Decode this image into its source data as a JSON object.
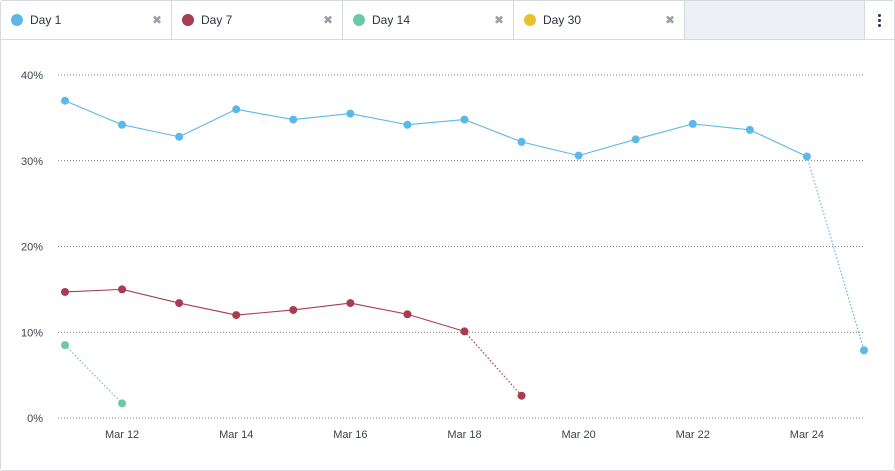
{
  "tabs": [
    {
      "label": "Day 1",
      "color": "#5cb8e8",
      "close_icon": "close-icon"
    },
    {
      "label": "Day 7",
      "color": "#a83c52",
      "close_icon": "close-icon"
    },
    {
      "label": "Day 14",
      "color": "#6cc9a7",
      "close_icon": "close-icon"
    },
    {
      "label": "Day 30",
      "color": "#e6c12d",
      "close_icon": "close-icon"
    }
  ],
  "menu_icon": "more-vertical-icon",
  "chart_data": {
    "type": "line",
    "title": "",
    "xlabel": "",
    "ylabel": "",
    "x": [
      "Mar 11",
      "Mar 12",
      "Mar 13",
      "Mar 14",
      "Mar 15",
      "Mar 16",
      "Mar 17",
      "Mar 18",
      "Mar 19",
      "Mar 20",
      "Mar 21",
      "Mar 22",
      "Mar 23",
      "Mar 24",
      "Mar 25"
    ],
    "x_tick_labels": [
      "Mar 12",
      "Mar 14",
      "Mar 16",
      "Mar 18",
      "Mar 20",
      "Mar 22",
      "Mar 24"
    ],
    "y_tick_labels": [
      "0%",
      "10%",
      "20%",
      "30%",
      "40%"
    ],
    "ylim": [
      0,
      40
    ],
    "grid": true,
    "series": [
      {
        "name": "Day 1",
        "color": "#5cb8e8",
        "values": [
          37.0,
          34.2,
          32.8,
          36.0,
          34.8,
          35.5,
          34.2,
          34.8,
          32.2,
          30.6,
          32.5,
          34.3,
          33.6,
          30.5,
          7.9
        ],
        "partial_from": "Mar 24"
      },
      {
        "name": "Day 7",
        "color": "#a83c52",
        "values": [
          14.7,
          15.0,
          13.4,
          12.0,
          12.6,
          13.4,
          12.1,
          10.1,
          2.6,
          null,
          null,
          null,
          null,
          null,
          null
        ],
        "partial_from": "Mar 18"
      },
      {
        "name": "Day 14",
        "color": "#6cc9a7",
        "values": [
          8.5,
          1.7,
          null,
          null,
          null,
          null,
          null,
          null,
          null,
          null,
          null,
          null,
          null,
          null,
          null
        ],
        "partial_from": "Mar 11"
      },
      {
        "name": "Day 30",
        "color": "#e6c12d",
        "values": [
          null,
          null,
          null,
          null,
          null,
          null,
          null,
          null,
          null,
          null,
          null,
          null,
          null,
          null,
          null
        ],
        "partial_from": null
      }
    ]
  }
}
